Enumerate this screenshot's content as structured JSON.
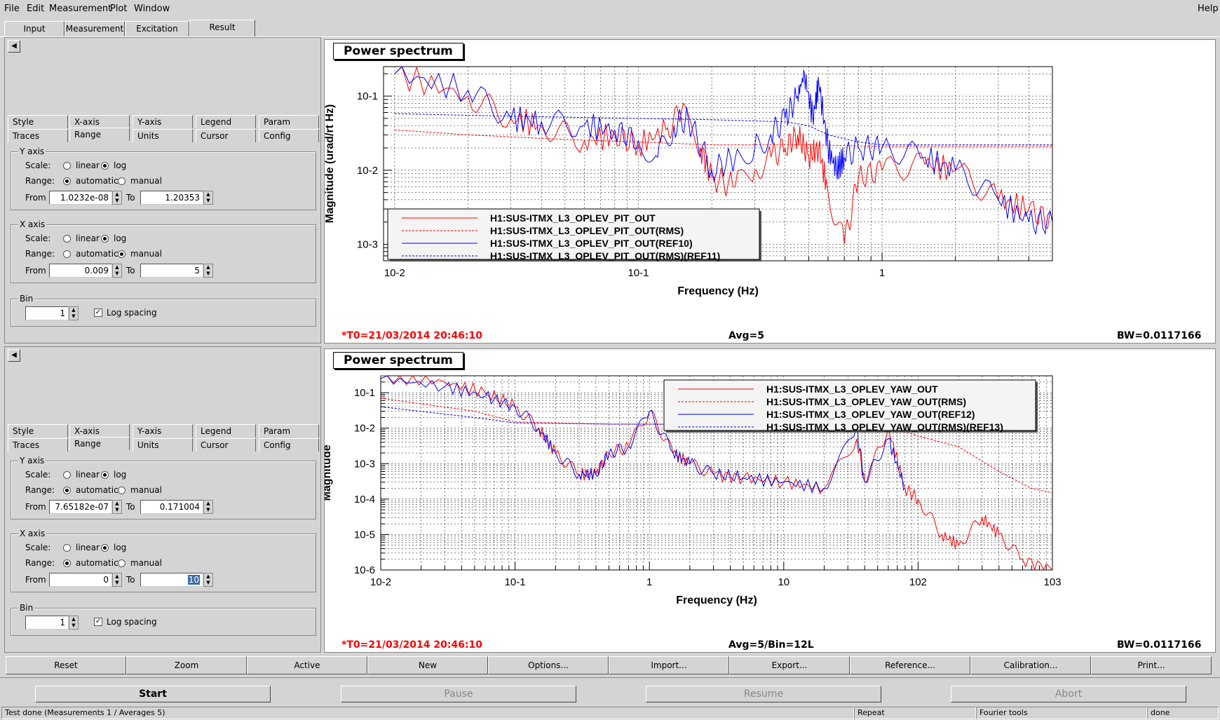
{
  "menu": {
    "file": "File",
    "edit": "Edit",
    "measurement": "Measurement",
    "plot": "Plot",
    "window": "Window",
    "help": "Help"
  },
  "tabs": {
    "input": "Input",
    "measurement": "Measurement",
    "excitation": "Excitation",
    "result": "Result"
  },
  "settings_tabs": {
    "style": "Style",
    "xaxis": "X-axis",
    "yaxis": "Y-axis",
    "legend": "Legend",
    "param": "Param",
    "traces": "Traces",
    "range": "Range",
    "units": "Units",
    "cursor": "Cursor",
    "config": "Config"
  },
  "common": {
    "y_axis": "Y axis",
    "x_axis": "X axis",
    "scale": "Scale:",
    "linear": "linear",
    "log": "log",
    "range": "Range:",
    "automatic": "automatic",
    "manual": "manual",
    "from": "From",
    "to": "To",
    "bin": "Bin",
    "log_spacing": "Log spacing"
  },
  "panel1": {
    "y_scale": "log",
    "y_range": "automatic",
    "y_from": "1.0232e-08",
    "y_to": "1.20353",
    "x_scale": "log",
    "x_range": "manual",
    "x_from": "0.009",
    "x_to": "5",
    "bin": "1",
    "log_spacing": true
  },
  "panel2": {
    "y_scale": "log",
    "y_range": "automatic",
    "y_from": "7.65182e-07",
    "y_to": "0.171004",
    "x_scale": "log",
    "x_range": "automatic",
    "x_from": "0",
    "x_to": "10",
    "bin": "1",
    "log_spacing": true
  },
  "plot1": {
    "title": "Power spectrum",
    "t0": "*T0=21/03/2014 20:46:10",
    "avg": "Avg=5",
    "bw": "BW=0.0117166"
  },
  "plot2": {
    "title": "Power spectrum",
    "t0": "*T0=21/03/2014 20:46:10",
    "avg": "Avg=5/Bin=12L",
    "bw": "BW=0.0117166"
  },
  "buttons": {
    "reset": "Reset",
    "zoom": "Zoom",
    "active": "Active",
    "new": "New",
    "options": "Options...",
    "import": "Import...",
    "export": "Export...",
    "reference": "Reference...",
    "calibration": "Calibration...",
    "print": "Print..."
  },
  "control": {
    "start": "Start",
    "pause": "Pause",
    "resume": "Resume",
    "abort": "Abort"
  },
  "status": {
    "main": "Test done (Measurements 1 / Averages 5)",
    "mode": "Repeat",
    "tool": "Fourier tools",
    "state": "done"
  },
  "colors": {
    "red": "#ff0000",
    "blue": "#0000ff"
  },
  "chart_data": [
    {
      "type": "line",
      "title": "Power spectrum",
      "xlabel": "Frequency (Hz)",
      "ylabel": "Magnitude (urad/rt Hz)",
      "x_scale": "log",
      "y_scale": "log",
      "xlim": [
        0.009,
        5
      ],
      "ylim": [
        0.0006,
        0.25
      ],
      "x_ticks": [
        "10-2",
        "10-1",
        "1"
      ],
      "y_ticks": [
        "10-3",
        "10-2",
        "10-1"
      ],
      "grid": true,
      "legend": "bottom-left",
      "series": [
        {
          "name": "H1:SUS-ITMX_L3_OPLEV_PIT_OUT",
          "color": "#ff0000",
          "style": "solid",
          "x": [
            0.01,
            0.02,
            0.03,
            0.04,
            0.06,
            0.08,
            0.1,
            0.13,
            0.15,
            0.18,
            0.2,
            0.25,
            0.3,
            0.35,
            0.4,
            0.45,
            0.5,
            0.55,
            0.6,
            0.7,
            0.8,
            1,
            1.5,
            2,
            3,
            4,
            5
          ],
          "y": [
            0.2,
            0.1,
            0.05,
            0.04,
            0.025,
            0.03,
            0.022,
            0.035,
            0.06,
            0.02,
            0.008,
            0.006,
            0.01,
            0.015,
            0.02,
            0.03,
            0.015,
            0.02,
            0.005,
            0.001,
            0.008,
            0.01,
            0.012,
            0.01,
            0.004,
            0.003,
            0.002
          ]
        },
        {
          "name": "H1:SUS-ITMX_L3_OPLEV_PIT_OUT(RMS)",
          "color": "#ff0000",
          "style": "dashed",
          "x": [
            0.01,
            0.02,
            0.05,
            0.1,
            0.2,
            0.5,
            1,
            2,
            5
          ],
          "y": [
            0.035,
            0.03,
            0.026,
            0.024,
            0.022,
            0.022,
            0.021,
            0.021,
            0.021
          ]
        },
        {
          "name": "H1:SUS-ITMX_L3_OPLEV_PIT_OUT(REF10)",
          "color": "#0000ff",
          "style": "solid",
          "x": [
            0.01,
            0.02,
            0.03,
            0.04,
            0.06,
            0.08,
            0.1,
            0.12,
            0.14,
            0.16,
            0.2,
            0.25,
            0.3,
            0.35,
            0.4,
            0.45,
            0.48,
            0.52,
            0.55,
            0.6,
            0.65,
            0.7,
            0.8,
            1,
            1.5,
            2,
            3,
            4,
            5
          ],
          "y": [
            0.2,
            0.12,
            0.05,
            0.045,
            0.04,
            0.035,
            0.025,
            0.015,
            0.04,
            0.05,
            0.01,
            0.015,
            0.02,
            0.03,
            0.05,
            0.1,
            0.2,
            0.05,
            0.15,
            0.02,
            0.01,
            0.015,
            0.02,
            0.02,
            0.015,
            0.01,
            0.004,
            0.002,
            0.002
          ]
        },
        {
          "name": "H1:SUS-ITMX_L3_OPLEV_PIT_OUT(RMS)(REF11)",
          "color": "#0000ff",
          "style": "dashed",
          "x": [
            0.01,
            0.02,
            0.05,
            0.1,
            0.2,
            0.4,
            0.5,
            0.6,
            0.8,
            1,
            2,
            5
          ],
          "y": [
            0.058,
            0.055,
            0.052,
            0.05,
            0.048,
            0.045,
            0.04,
            0.03,
            0.024,
            0.022,
            0.022,
            0.022
          ]
        }
      ]
    },
    {
      "type": "line",
      "title": "Power spectrum",
      "xlabel": "Frequency (Hz)",
      "ylabel": "Magnitude",
      "x_scale": "log",
      "y_scale": "log",
      "xlim": [
        0.01,
        1000
      ],
      "ylim": [
        1e-06,
        0.3
      ],
      "x_ticks": [
        "10-2",
        "10-1",
        "1",
        "10",
        "102",
        "103"
      ],
      "y_ticks": [
        "10-6",
        "10-5",
        "10-4",
        "10-3",
        "10-2",
        "10-1"
      ],
      "grid": true,
      "legend": "top-right",
      "series": [
        {
          "name": "H1:SUS-ITMX_L3_OPLEV_YAW_OUT",
          "color": "#ff0000",
          "style": "solid",
          "x": [
            0.01,
            0.03,
            0.06,
            0.1,
            0.15,
            0.2,
            0.3,
            0.4,
            0.5,
            0.7,
            1,
            1.5,
            2,
            3,
            5,
            10,
            20,
            35,
            40,
            60,
            80,
            100,
            150,
            200,
            300,
            400,
            600,
            1000
          ],
          "y": [
            0.3,
            0.2,
            0.1,
            0.04,
            0.01,
            0.002,
            0.0005,
            0.0005,
            0.002,
            0.003,
            0.03,
            0.002,
            0.001,
            0.0005,
            0.0004,
            0.0003,
            0.0002,
            0.005,
            0.0003,
            0.01,
            0.0002,
            0.0001,
            1e-05,
            5e-06,
            3e-05,
            1e-05,
            2e-06,
            1e-06
          ]
        },
        {
          "name": "H1:SUS-ITMX_L3_OPLEV_YAW_OUT(RMS)",
          "color": "#ff0000",
          "style": "dashed",
          "x": [
            0.01,
            0.05,
            0.1,
            0.5,
            1,
            10,
            50,
            80,
            100,
            200,
            400,
            700,
            1000
          ],
          "y": [
            0.07,
            0.03,
            0.015,
            0.013,
            0.013,
            0.012,
            0.012,
            0.008,
            0.006,
            0.003,
            0.0006,
            0.0002,
            0.00015
          ]
        },
        {
          "name": "H1:SUS-ITMX_L3_OPLEV_YAW_OUT(REF12)",
          "color": "#0000ff",
          "style": "solid",
          "x": [
            0.01,
            0.03,
            0.06,
            0.1,
            0.15,
            0.2,
            0.3,
            0.4,
            0.5,
            0.7,
            1,
            1.5,
            2,
            3,
            5,
            10,
            20,
            35,
            40,
            60,
            80
          ],
          "y": [
            0.25,
            0.15,
            0.08,
            0.04,
            0.01,
            0.002,
            0.0005,
            0.0005,
            0.002,
            0.003,
            0.03,
            0.002,
            0.001,
            0.0005,
            0.0004,
            0.0003,
            0.0002,
            0.01,
            0.0003,
            0.005,
            0.0002
          ]
        },
        {
          "name": "H1:SUS-ITMX_L3_OPLEV_YAW_OUT(RMS)(REF13)",
          "color": "#0000ff",
          "style": "dashed",
          "x": [
            0.01,
            0.05,
            0.1,
            0.5,
            1,
            10,
            50
          ],
          "y": [
            0.04,
            0.02,
            0.014,
            0.013,
            0.013,
            0.012,
            0.012
          ]
        }
      ]
    }
  ]
}
